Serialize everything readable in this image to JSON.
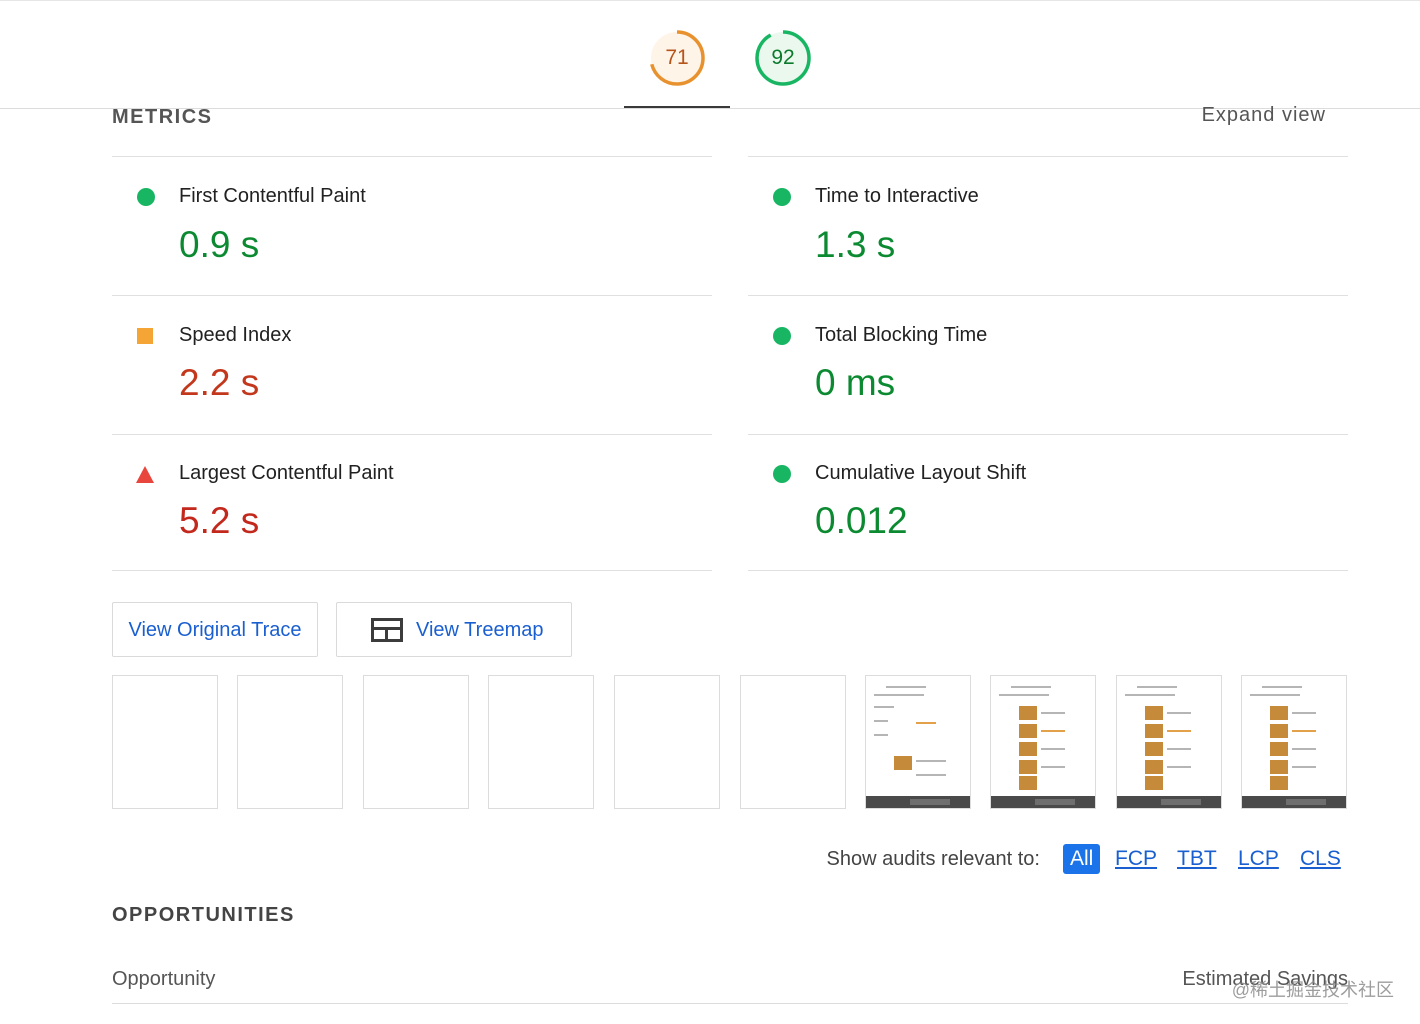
{
  "header": {
    "scores": [
      {
        "value": "71",
        "fraction": 0.71,
        "color": "#e8922f"
      },
      {
        "value": "92",
        "fraction": 0.92,
        "color": "#18b663"
      }
    ]
  },
  "metrics": {
    "title": "METRICS",
    "expand_label": "Expand view",
    "items": [
      {
        "label": "First Contentful Paint",
        "value": "0.9 s",
        "status": "good",
        "icon": "green-circle-icon"
      },
      {
        "label": "Time to Interactive",
        "value": "1.3 s",
        "status": "good",
        "icon": "green-circle-icon"
      },
      {
        "label": "Speed Index",
        "value": "2.2 s",
        "status": "average",
        "icon": "orange-square-icon"
      },
      {
        "label": "Total Blocking Time",
        "value": "0 ms",
        "status": "good",
        "icon": "green-circle-icon"
      },
      {
        "label": "Largest Contentful Paint",
        "value": "5.2 s",
        "status": "poor",
        "icon": "red-triangle-icon"
      },
      {
        "label": "Cumulative Layout Shift",
        "value": "0.012",
        "status": "good",
        "icon": "green-circle-icon"
      }
    ]
  },
  "buttons": {
    "view_trace": "View Original Trace",
    "view_treemap": "View Treemap"
  },
  "filmstrip": {
    "frames_blank": 6,
    "frames_loaded": 4
  },
  "audit_filter": {
    "label": "Show audits relevant to:",
    "options": [
      "All",
      "FCP",
      "TBT",
      "LCP",
      "CLS"
    ],
    "selected": "All"
  },
  "opportunities": {
    "title": "OPPORTUNITIES",
    "col_left": "Opportunity",
    "col_right": "Estimated Savings"
  },
  "watermark": "@稀土掘金技术社区",
  "colors": {
    "good": "#0c8a31",
    "average": "#c3381c",
    "poor": "#c3281c",
    "link": "#1a5fd0"
  }
}
